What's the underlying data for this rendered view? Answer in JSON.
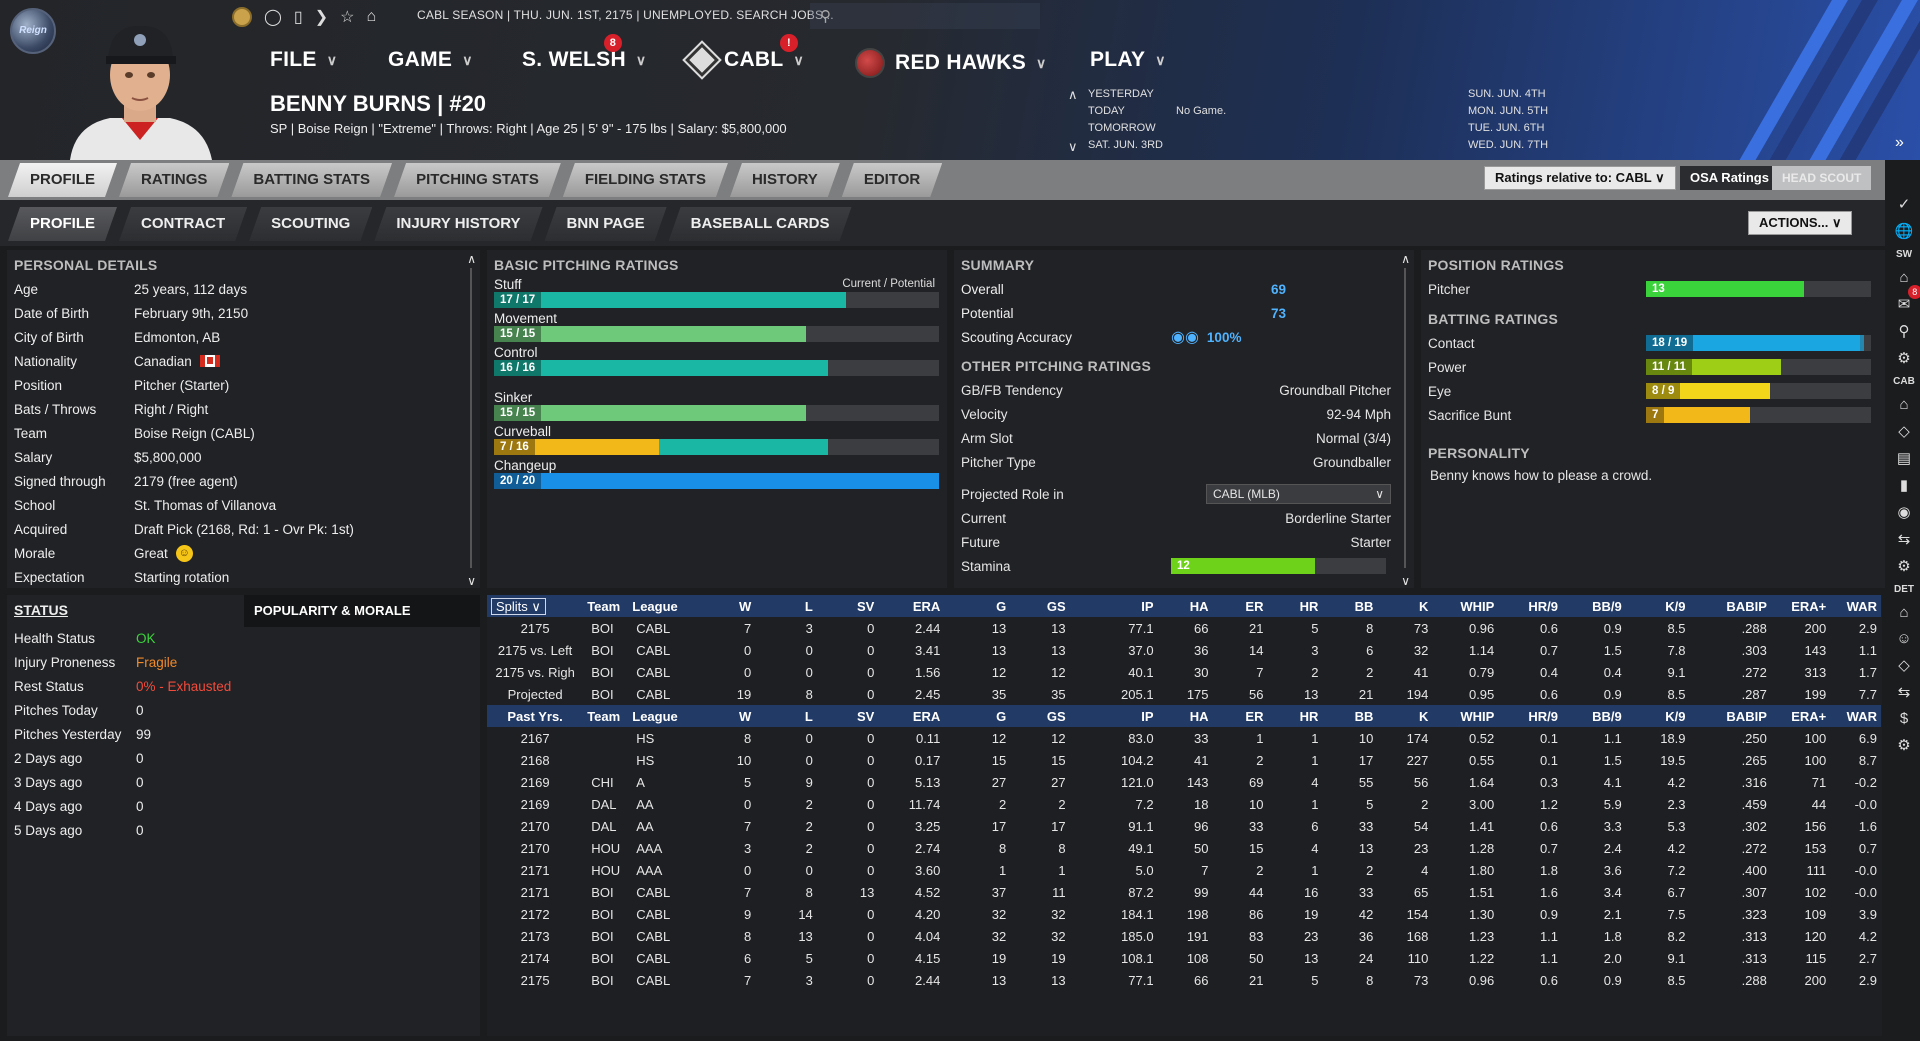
{
  "header": {
    "logo_text": "Reign",
    "status_text": "CABL SEASON  |  THU. JUN. 1ST, 2175  |  UNEMPLOYED. SEARCH JOBS...",
    "menus": [
      {
        "label": "FILE"
      },
      {
        "label": "GAME"
      },
      {
        "label": "S. WELSH",
        "badge": "8"
      },
      {
        "label": "CABL",
        "badge": "!"
      },
      {
        "label": "RED HAWKS"
      },
      {
        "label": "PLAY"
      }
    ],
    "player_name": "BENNY BURNS  |  #20",
    "player_info": "SP | Boise Reign  |  \"Extreme\"  |  Throws: Right  |  Age 25  |  5' 9\" - 175 lbs  |  Salary: $5,800,000",
    "schedule_left": [
      "YESTERDAY",
      "TODAY",
      "TOMORROW",
      "SAT. JUN. 3RD"
    ],
    "schedule_today_value": "No Game.",
    "schedule_right": [
      "SUN. JUN. 4TH",
      "MON. JUN. 5TH",
      "TUE. JUN. 6TH",
      "WED. JUN. 7TH"
    ]
  },
  "tabs1": [
    "PROFILE",
    "RATINGS",
    "BATTING STATS",
    "PITCHING STATS",
    "FIELDING STATS",
    "HISTORY",
    "EDITOR"
  ],
  "tabs2": [
    "PROFILE",
    "CONTRACT",
    "SCOUTING",
    "INJURY HISTORY",
    "BNN PAGE",
    "BASEBALL CARDS"
  ],
  "controls": {
    "relative": "Ratings relative to: CABL",
    "osa": "OSA Ratings",
    "head_scout": "HEAD SCOUT",
    "actions": "ACTIONS..."
  },
  "personal": {
    "title": "PERSONAL DETAILS",
    "rows": [
      {
        "k": "Age",
        "v": "25 years, 112 days"
      },
      {
        "k": "Date of Birth",
        "v": "February 9th, 2150"
      },
      {
        "k": "City of Birth",
        "v": "Edmonton, AB"
      },
      {
        "k": "Nationality",
        "v": "Canadian"
      },
      {
        "k": "Position",
        "v": "Pitcher (Starter)"
      },
      {
        "k": "Bats / Throws",
        "v": "Right / Right"
      },
      {
        "k": "Team",
        "v": "Boise Reign (CABL)"
      },
      {
        "k": "Salary",
        "v": "$5,800,000"
      },
      {
        "k": "Signed through",
        "v": "2179 (free agent)"
      },
      {
        "k": "School",
        "v": "St. Thomas of Villanova"
      },
      {
        "k": "Acquired",
        "v": "Draft Pick (2168, Rd: 1 - Ovr Pk: 1st)"
      },
      {
        "k": "Morale",
        "v": "Great"
      },
      {
        "k": "Expectation",
        "v": "Starting rotation"
      }
    ]
  },
  "status": {
    "title": "STATUS",
    "popularity_tab": "POPULARITY & MORALE",
    "rows": [
      {
        "k": "Health Status",
        "v": "OK",
        "color": "#3bd33b"
      },
      {
        "k": "Injury Proneness",
        "v": "Fragile",
        "color": "#f08a2a"
      },
      {
        "k": "Rest Status",
        "v": "0% - Exhausted",
        "color": "#f24b3b"
      },
      {
        "k": "Pitches Today",
        "v": "0",
        "color": "#eeeeee"
      },
      {
        "k": "Pitches Yesterday",
        "v": "99",
        "color": "#eeeeee"
      },
      {
        "k": "2 Days ago",
        "v": "0",
        "color": "#eeeeee"
      },
      {
        "k": "3 Days ago",
        "v": "0",
        "color": "#eeeeee"
      },
      {
        "k": "4 Days ago",
        "v": "0",
        "color": "#eeeeee"
      },
      {
        "k": "5 Days ago",
        "v": "0",
        "color": "#eeeeee"
      }
    ]
  },
  "pitching": {
    "title": "BASIC PITCHING RATINGS",
    "legend": "Current / Potential",
    "ratings": [
      {
        "name": "Stuff",
        "text": "17 / 17",
        "cur": 0.79,
        "pot": 0.79,
        "color": "#1ab8a4"
      },
      {
        "name": "Movement",
        "text": "15 / 15",
        "cur": 0.7,
        "pot": 0.7,
        "color": "#6ec97a"
      },
      {
        "name": "Control",
        "text": "16 / 16",
        "cur": 0.75,
        "pot": 0.75,
        "color": "#1ab8a4"
      },
      {
        "name": "Sinker",
        "text": "15 / 15",
        "cur": 0.7,
        "pot": 0.7,
        "color": "#6ec97a"
      },
      {
        "name": "Curveball",
        "text": "7 / 16",
        "cur": 0.37,
        "pot": 0.75,
        "color": "#f2b81a",
        "pcolor": "#1ab8a4"
      },
      {
        "name": "Changeup",
        "text": "20 / 20",
        "cur": 1.0,
        "pot": 1.0,
        "color": "#1a8fe8"
      }
    ]
  },
  "summary": {
    "title": "SUMMARY",
    "overall_k": "Overall",
    "overall_v": "69",
    "potential_k": "Potential",
    "potential_v": "73",
    "scout_k": "Scouting Accuracy",
    "scout_v": "100%",
    "other_title": "OTHER PITCHING RATINGS",
    "rows": [
      {
        "k": "GB/FB Tendency",
        "v": "Groundball Pitcher"
      },
      {
        "k": "Velocity",
        "v": "92-94 Mph"
      },
      {
        "k": "Arm Slot",
        "v": "Normal (3/4)"
      },
      {
        "k": "Pitcher Type",
        "v": "Groundballer"
      }
    ],
    "proj_k": "Projected Role in",
    "proj_select": "CABL (MLB)",
    "current_k": "Current",
    "current_v": "Borderline Starter",
    "future_k": "Future",
    "future_v": "Starter",
    "stamina_k": "Stamina",
    "stamina_v": "12",
    "stamina_fill": 0.67
  },
  "position": {
    "title": "POSITION RATINGS",
    "pitcher_k": "Pitcher",
    "pitcher_v": "13",
    "pitcher_fill": 0.7,
    "batting_title": "BATTING RATINGS",
    "batting": [
      {
        "name": "Contact",
        "text": "18 / 19",
        "cur": 0.95,
        "pot": 0.97,
        "color": "#1aa6e0"
      },
      {
        "name": "Power",
        "text": "11 / 11",
        "cur": 0.6,
        "pot": 0.6,
        "color": "#9ecf16"
      },
      {
        "name": "Eye",
        "text": "8 / 9",
        "cur": 0.55,
        "pot": 0.55,
        "color": "#f2d61a"
      },
      {
        "name": "Sacrifice Bunt",
        "text": "7",
        "cur": 0.46,
        "pot": 0.46,
        "color": "#f2b81a"
      }
    ],
    "personality_title": "PERSONALITY",
    "personality_text": "Benny knows how to please a crowd."
  },
  "stats": {
    "split_select": "Splits",
    "headers": [
      "Team",
      "League",
      "W",
      "L",
      "SV",
      "ERA",
      "G",
      "GS",
      "IP",
      "HA",
      "ER",
      "HR",
      "BB",
      "K",
      "WHIP",
      "HR/9",
      "BB/9",
      "K/9",
      "BABIP",
      "ERA+",
      "WAR"
    ],
    "split_rows": [
      [
        "2175",
        "BOI",
        "CABL",
        "7",
        "3",
        "0",
        "2.44",
        "13",
        "13",
        "77.1",
        "66",
        "21",
        "5",
        "8",
        "73",
        "0.96",
        "0.6",
        "0.9",
        "8.5",
        ".288",
        "200",
        "2.9"
      ],
      [
        "2175 vs. Left",
        "BOI",
        "CABL",
        "0",
        "0",
        "0",
        "3.41",
        "13",
        "13",
        "37.0",
        "36",
        "14",
        "3",
        "6",
        "32",
        "1.14",
        "0.7",
        "1.5",
        "7.8",
        ".303",
        "143",
        "1.1"
      ],
      [
        "2175 vs. Righ",
        "BOI",
        "CABL",
        "0",
        "0",
        "0",
        "1.56",
        "12",
        "12",
        "40.1",
        "30",
        "7",
        "2",
        "2",
        "41",
        "0.79",
        "0.4",
        "0.4",
        "9.1",
        ".272",
        "313",
        "1.7"
      ],
      [
        "Projected",
        "BOI",
        "CABL",
        "19",
        "8",
        "0",
        "2.45",
        "35",
        "35",
        "205.1",
        "175",
        "56",
        "13",
        "21",
        "194",
        "0.95",
        "0.6",
        "0.9",
        "8.5",
        ".287",
        "199",
        "7.7"
      ]
    ],
    "past_label": "Past Yrs.",
    "past_rows": [
      [
        "2167",
        "",
        "HS",
        "8",
        "0",
        "0",
        "0.11",
        "12",
        "12",
        "83.0",
        "33",
        "1",
        "1",
        "10",
        "174",
        "0.52",
        "0.1",
        "1.1",
        "18.9",
        ".250",
        "100",
        "6.9"
      ],
      [
        "2168",
        "",
        "HS",
        "10",
        "0",
        "0",
        "0.17",
        "15",
        "15",
        "104.2",
        "41",
        "2",
        "1",
        "17",
        "227",
        "0.55",
        "0.1",
        "1.5",
        "19.5",
        ".265",
        "100",
        "8.7"
      ],
      [
        "2169",
        "CHI",
        "A",
        "5",
        "9",
        "0",
        "5.13",
        "27",
        "27",
        "121.0",
        "143",
        "69",
        "4",
        "55",
        "56",
        "1.64",
        "0.3",
        "4.1",
        "4.2",
        ".316",
        "71",
        "-0.2"
      ],
      [
        "2169",
        "DAL",
        "AA",
        "0",
        "2",
        "0",
        "11.74",
        "2",
        "2",
        "7.2",
        "18",
        "10",
        "1",
        "5",
        "2",
        "3.00",
        "1.2",
        "5.9",
        "2.3",
        ".459",
        "44",
        "-0.0"
      ],
      [
        "2170",
        "DAL",
        "AA",
        "7",
        "2",
        "0",
        "3.25",
        "17",
        "17",
        "91.1",
        "96",
        "33",
        "6",
        "33",
        "54",
        "1.41",
        "0.6",
        "3.3",
        "5.3",
        ".302",
        "156",
        "1.6"
      ],
      [
        "2170",
        "HOU",
        "AAA",
        "3",
        "2",
        "0",
        "2.74",
        "8",
        "8",
        "49.1",
        "50",
        "15",
        "4",
        "13",
        "23",
        "1.28",
        "0.7",
        "2.4",
        "4.2",
        ".272",
        "153",
        "0.7"
      ],
      [
        "2171",
        "HOU",
        "AAA",
        "0",
        "0",
        "0",
        "3.60",
        "1",
        "1",
        "5.0",
        "7",
        "2",
        "1",
        "2",
        "4",
        "1.80",
        "1.8",
        "3.6",
        "7.2",
        ".400",
        "111",
        "-0.0"
      ],
      [
        "2171",
        "BOI",
        "CABL",
        "7",
        "8",
        "13",
        "4.52",
        "37",
        "11",
        "87.2",
        "99",
        "44",
        "16",
        "33",
        "65",
        "1.51",
        "1.6",
        "3.4",
        "6.7",
        ".307",
        "102",
        "-0.0"
      ],
      [
        "2172",
        "BOI",
        "CABL",
        "9",
        "14",
        "0",
        "4.20",
        "32",
        "32",
        "184.1",
        "198",
        "86",
        "19",
        "42",
        "154",
        "1.30",
        "0.9",
        "2.1",
        "7.5",
        ".323",
        "109",
        "3.9"
      ],
      [
        "2173",
        "BOI",
        "CABL",
        "8",
        "13",
        "0",
        "4.04",
        "32",
        "32",
        "185.0",
        "191",
        "83",
        "23",
        "36",
        "168",
        "1.23",
        "1.1",
        "1.8",
        "8.2",
        ".313",
        "120",
        "4.2"
      ],
      [
        "2174",
        "BOI",
        "CABL",
        "6",
        "5",
        "0",
        "4.15",
        "19",
        "19",
        "108.1",
        "108",
        "50",
        "13",
        "24",
        "110",
        "1.22",
        "1.1",
        "2.0",
        "9.1",
        ".313",
        "115",
        "2.7"
      ],
      [
        "2175",
        "BOI",
        "CABL",
        "7",
        "3",
        "0",
        "2.44",
        "13",
        "13",
        "77.1",
        "66",
        "21",
        "5",
        "8",
        "73",
        "0.96",
        "0.6",
        "0.9",
        "8.5",
        ".288",
        "200",
        "2.9"
      ]
    ]
  },
  "sidebar": {
    "labels": [
      "SW",
      "CAB",
      "DET"
    ],
    "badge": "8"
  }
}
